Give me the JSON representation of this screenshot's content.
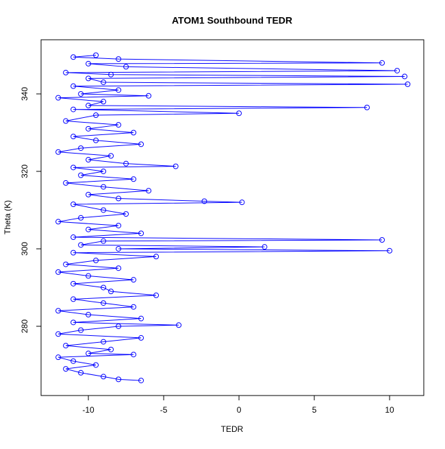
{
  "chart_data": {
    "type": "line",
    "title": "ATOM1 Southbound TEDR",
    "x_label": "TEDR",
    "y_label": "Theta (K)",
    "x": [
      -9.5,
      -11,
      -8,
      9.5,
      -10,
      -7.5,
      10.5,
      -11.5,
      -8.5,
      11,
      -10,
      -9,
      11.2,
      -11,
      -8,
      -10.5,
      -6,
      -12,
      -9,
      -10,
      8.5,
      -11,
      0,
      -9.5,
      -11.5,
      -8,
      -10,
      -7,
      -11,
      -9.5,
      -6.5,
      -10.5,
      -12,
      -8.5,
      -10,
      -7.5,
      -4.2,
      -11,
      -9,
      -10.5,
      -7,
      -11.5,
      -9,
      -6,
      -10,
      -8,
      -2.3,
      0.2,
      -11,
      -9,
      -7.5,
      -10.5,
      -12,
      -8,
      -10,
      -6.5,
      -11,
      9.5,
      -9,
      -10.5,
      1.7,
      -8,
      10,
      -11,
      -5.5,
      -9.5,
      -11.5,
      -8,
      -12,
      -10,
      -7,
      -11,
      -9,
      -8.5,
      -5.5,
      -11,
      -9,
      -7,
      -12,
      -10,
      -6.5,
      -11,
      -4,
      -8,
      -10.5,
      -12,
      -6.5,
      -9,
      -11.5,
      -8.5,
      -10,
      -7,
      -12,
      -11,
      -9.5,
      -11.5,
      -10.5,
      -9,
      -8,
      -6.5
    ],
    "series": [
      {
        "name": "TEDR",
        "color": "#0000ff",
        "values": [
          350,
          349.5,
          349,
          348,
          347.8,
          347,
          346,
          345.5,
          345,
          344.5,
          344,
          343,
          342.5,
          342,
          341,
          340,
          339.5,
          339,
          338,
          337,
          336.5,
          336,
          335,
          334.5,
          333,
          332,
          331,
          330,
          329,
          328,
          327,
          326,
          325,
          324,
          323,
          322,
          321.3,
          321,
          320,
          319,
          318,
          317,
          316,
          315,
          314,
          313,
          312.3,
          312,
          311.5,
          310,
          309,
          308,
          307,
          306,
          305,
          304,
          303,
          302.3,
          302,
          301,
          300.5,
          300,
          299.5,
          299,
          298,
          297,
          296,
          295,
          294,
          293,
          292,
          291,
          290,
          289,
          288,
          287,
          286,
          285,
          284,
          283,
          282,
          281,
          280.3,
          280,
          279,
          278,
          277,
          276,
          275,
          274,
          273,
          272.7,
          272,
          271,
          270,
          269,
          268,
          267,
          266.3,
          266
        ]
      }
    ],
    "xlim": [
      -13.14,
      12.27
    ],
    "ylim": [
      262.12,
      353.98
    ],
    "xticks": [
      -10,
      -5,
      0,
      5,
      10
    ],
    "yticks": [
      280,
      300,
      320,
      340
    ]
  }
}
